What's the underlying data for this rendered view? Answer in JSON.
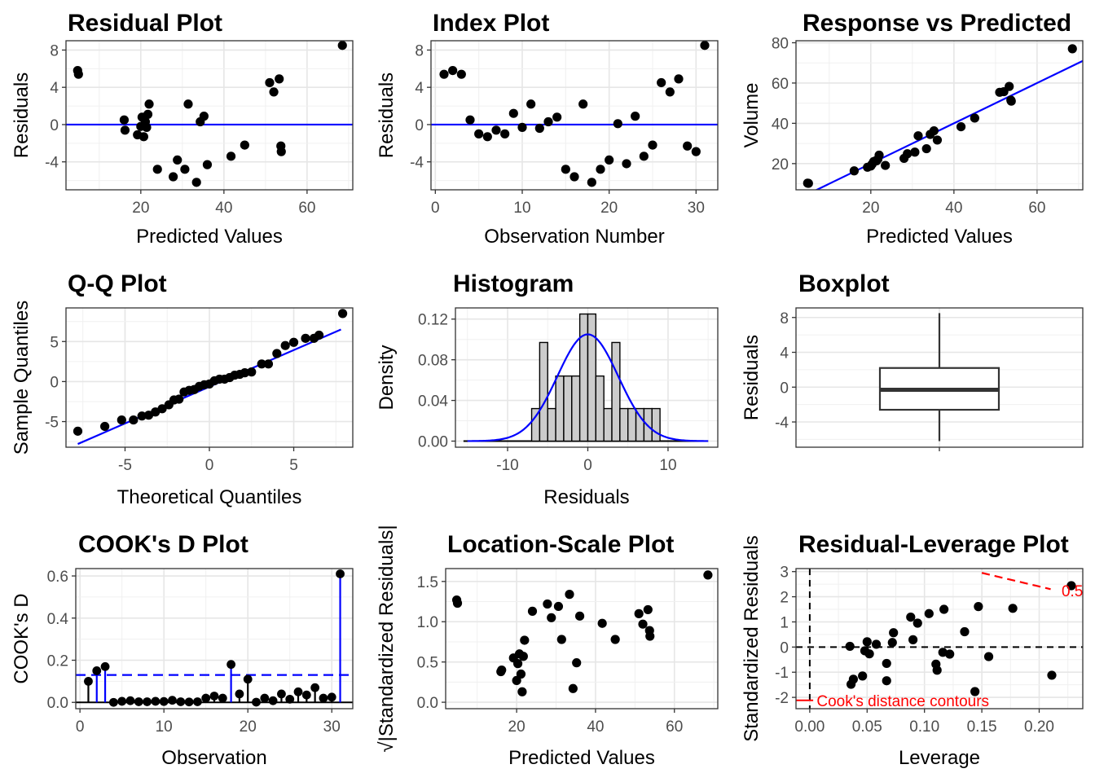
{
  "chart_data": [
    {
      "type": "scatter",
      "title": "Residual Plot",
      "xlabel": "Predicted Values",
      "ylabel": "Residuals",
      "xlim": [
        2,
        71
      ],
      "ylim": [
        -7,
        9
      ],
      "xticks": [
        20,
        40,
        60
      ],
      "yticks": [
        -4,
        0,
        4,
        8
      ],
      "reference_line": {
        "type": "horizontal",
        "y": 0,
        "color": "#0000ff"
      },
      "points": [
        [
          4.8,
          5.8
        ],
        [
          5.0,
          5.4
        ],
        [
          16.0,
          0.5
        ],
        [
          16.2,
          -0.6
        ],
        [
          19.2,
          -1.1
        ],
        [
          20.0,
          -0.2
        ],
        [
          20.3,
          0.8
        ],
        [
          20.7,
          -1.3
        ],
        [
          21.1,
          0.3
        ],
        [
          21.4,
          -0.3
        ],
        [
          21.7,
          1.1
        ],
        [
          22.0,
          2.2
        ],
        [
          24.0,
          -4.8
        ],
        [
          27.8,
          -5.6
        ],
        [
          28.8,
          -3.8
        ],
        [
          30.6,
          -4.8
        ],
        [
          31.4,
          2.2
        ],
        [
          33.4,
          -6.2
        ],
        [
          34.3,
          0.3
        ],
        [
          35.2,
          0.9
        ],
        [
          36.0,
          -4.3
        ],
        [
          41.7,
          -3.4
        ],
        [
          45.0,
          -2.2
        ],
        [
          51.0,
          4.5
        ],
        [
          52.0,
          3.5
        ],
        [
          53.3,
          4.9
        ],
        [
          53.7,
          -2.3
        ],
        [
          53.8,
          -2.9
        ],
        [
          68.5,
          8.5
        ]
      ]
    },
    {
      "type": "scatter",
      "title": "Index Plot",
      "xlabel": "Observation Number",
      "ylabel": "Residuals",
      "xlim": [
        -0.5,
        32.5
      ],
      "ylim": [
        -7,
        9
      ],
      "xticks": [
        0,
        10,
        20,
        30
      ],
      "yticks": [
        -4,
        0,
        4,
        8
      ],
      "reference_line": {
        "type": "horizontal",
        "y": 0,
        "color": "#0000ff"
      },
      "points": [
        [
          1,
          5.4
        ],
        [
          2,
          5.8
        ],
        [
          3,
          5.4
        ],
        [
          4,
          0.5
        ],
        [
          5,
          -1.0
        ],
        [
          6,
          -1.3
        ],
        [
          7,
          -0.6
        ],
        [
          8,
          -1.0
        ],
        [
          9,
          1.2
        ],
        [
          10,
          -0.3
        ],
        [
          11,
          2.2
        ],
        [
          12,
          -0.4
        ],
        [
          13,
          0.3
        ],
        [
          14,
          0.8
        ],
        [
          15,
          -4.8
        ],
        [
          16,
          -5.6
        ],
        [
          17,
          2.2
        ],
        [
          18,
          -6.2
        ],
        [
          19,
          -4.8
        ],
        [
          20,
          -3.8
        ],
        [
          21,
          0.1
        ],
        [
          22,
          -4.2
        ],
        [
          23,
          0.9
        ],
        [
          24,
          -3.4
        ],
        [
          25,
          -2.2
        ],
        [
          26,
          4.5
        ],
        [
          27,
          3.5
        ],
        [
          28,
          4.9
        ],
        [
          29,
          -2.3
        ],
        [
          30,
          -2.9
        ],
        [
          31,
          8.5
        ]
      ]
    },
    {
      "type": "scatter",
      "title": "Response vs Predicted",
      "xlabel": "Predicted Values",
      "ylabel": "Volume",
      "xlim": [
        2,
        71
      ],
      "ylim": [
        7,
        81
      ],
      "xticks": [
        20,
        40,
        60
      ],
      "yticks": [
        20,
        40,
        60,
        80
      ],
      "reference_line": {
        "type": "identity",
        "color": "#0000ff"
      },
      "points": [
        [
          4.8,
          10.3
        ],
        [
          5.0,
          10.2
        ],
        [
          16.0,
          16.4
        ],
        [
          19.2,
          18.2
        ],
        [
          20.0,
          18.8
        ],
        [
          20.3,
          19.7
        ],
        [
          20.7,
          21.0
        ],
        [
          21.1,
          21.3
        ],
        [
          21.4,
          21.4
        ],
        [
          21.7,
          22.2
        ],
        [
          22.0,
          24.2
        ],
        [
          23.5,
          19.1
        ],
        [
          28.0,
          22.6
        ],
        [
          28.8,
          24.9
        ],
        [
          30.6,
          25.7
        ],
        [
          31.4,
          33.8
        ],
        [
          33.4,
          27.4
        ],
        [
          34.3,
          34.5
        ],
        [
          35.2,
          36.3
        ],
        [
          36.0,
          31.7
        ],
        [
          41.7,
          38.3
        ],
        [
          45.0,
          42.6
        ],
        [
          51.0,
          55.4
        ],
        [
          52.0,
          55.7
        ],
        [
          53.3,
          58.3
        ],
        [
          53.7,
          51.5
        ],
        [
          53.8,
          51.0
        ],
        [
          68.5,
          77.0
        ]
      ]
    },
    {
      "type": "scatter",
      "title": "Q-Q Plot",
      "xlabel": "Theoretical Quantiles",
      "ylabel": "Sample Quantiles",
      "xlim": [
        -8.5,
        8.5
      ],
      "ylim": [
        -8.2,
        9.2
      ],
      "xticks": [
        -5,
        0,
        5
      ],
      "yticks": [
        -5,
        0,
        5
      ],
      "reference_line": {
        "type": "line",
        "from": [
          -7.8,
          -7.8
        ],
        "to": [
          7.8,
          6.5
        ],
        "color": "#0000ff"
      },
      "points": [
        [
          -7.8,
          -6.2
        ],
        [
          -6.2,
          -5.6
        ],
        [
          -5.2,
          -4.8
        ],
        [
          -4.5,
          -4.8
        ],
        [
          -4.0,
          -4.3
        ],
        [
          -3.6,
          -4.2
        ],
        [
          -3.2,
          -3.8
        ],
        [
          -2.8,
          -3.4
        ],
        [
          -2.4,
          -2.9
        ],
        [
          -2.1,
          -2.3
        ],
        [
          -1.8,
          -2.2
        ],
        [
          -1.5,
          -1.3
        ],
        [
          -1.2,
          -1.1
        ],
        [
          -0.9,
          -1.0
        ],
        [
          -0.6,
          -0.6
        ],
        [
          -0.3,
          -0.4
        ],
        [
          0.0,
          -0.3
        ],
        [
          0.3,
          0.1
        ],
        [
          0.6,
          0.3
        ],
        [
          0.9,
          0.3
        ],
        [
          1.2,
          0.5
        ],
        [
          1.5,
          0.8
        ],
        [
          1.8,
          0.9
        ],
        [
          2.1,
          1.1
        ],
        [
          2.5,
          1.2
        ],
        [
          3.1,
          2.2
        ],
        [
          3.5,
          2.2
        ],
        [
          4.0,
          3.5
        ],
        [
          4.5,
          4.5
        ],
        [
          5.0,
          4.9
        ],
        [
          5.7,
          5.4
        ],
        [
          6.2,
          5.4
        ],
        [
          6.5,
          5.8
        ],
        [
          7.9,
          8.5
        ]
      ]
    },
    {
      "type": "bar",
      "subtype": "histogram",
      "title": "Histogram",
      "xlabel": "Residuals",
      "ylabel": "Density",
      "xlim": [
        -16.5,
        16.2
      ],
      "ylim": [
        -0.006,
        0.131
      ],
      "xticks": [
        -10,
        0,
        10
      ],
      "yticks": [
        0.0,
        0.04,
        0.08,
        0.12
      ],
      "ytick_labels": [
        "0.00",
        "0.04",
        "0.08",
        "0.12"
      ],
      "bin_width": 1,
      "bin_edges_start": -7,
      "values": [
        0.032,
        0.097,
        0.032,
        0.064,
        0.064,
        0.064,
        0.125,
        0.125,
        0.064,
        0.032,
        0.097,
        0.032,
        0.032,
        0.032,
        0.032,
        0.032
      ],
      "density_curve": {
        "type": "normal",
        "mean": 0,
        "sd": 3.8,
        "x_range": [
          -15,
          15
        ],
        "color": "#0000ff"
      },
      "baseline": [
        -15.5,
        15.0
      ]
    },
    {
      "type": "boxplot",
      "title": "Boxplot",
      "xlabel": "",
      "ylabel": "Residuals",
      "ylim": [
        -6.9,
        9.1
      ],
      "yticks": [
        -4,
        0,
        4,
        8
      ],
      "stats": {
        "min": -6.2,
        "q1": -2.6,
        "median": -0.3,
        "q3": 2.2,
        "max": 8.5
      }
    },
    {
      "type": "bar",
      "subtype": "lollipop",
      "title": "COOK's D Plot",
      "xlabel": "Observation",
      "ylabel": "COOK's D",
      "xlim": [
        -0.5,
        32.5
      ],
      "ylim": [
        -0.03,
        0.635
      ],
      "xticks": [
        0,
        10,
        20,
        30
      ],
      "yticks": [
        0.0,
        0.2,
        0.4,
        0.6
      ],
      "ytick_labels": [
        "0.0",
        "0.2",
        "0.4",
        "0.6"
      ],
      "threshold_line": {
        "y": 0.13,
        "color": "#0000ff",
        "dashed": true
      },
      "highlight_above_threshold": true,
      "categories": [
        1,
        2,
        3,
        4,
        5,
        6,
        7,
        8,
        9,
        10,
        11,
        12,
        13,
        14,
        15,
        16,
        17,
        18,
        19,
        20,
        21,
        22,
        23,
        24,
        25,
        26,
        27,
        28,
        29,
        30,
        31
      ],
      "values": [
        0.1,
        0.15,
        0.17,
        0.0,
        0.005,
        0.008,
        0.003,
        0.003,
        0.005,
        0.004,
        0.01,
        0.003,
        0.002,
        0.003,
        0.02,
        0.03,
        0.02,
        0.18,
        0.04,
        0.11,
        0.001,
        0.02,
        0.008,
        0.04,
        0.015,
        0.05,
        0.035,
        0.07,
        0.02,
        0.025,
        0.61
      ]
    },
    {
      "type": "scatter",
      "title": "Location-Scale Plot",
      "xlabel": "Predicted Values",
      "ylabel": "√|Standardized Residuals|",
      "xlim": [
        2,
        71
      ],
      "ylim": [
        -0.08,
        1.66
      ],
      "xticks": [
        20,
        40,
        60
      ],
      "yticks": [
        0.0,
        0.5,
        1.0,
        1.5
      ],
      "ytick_labels": [
        "0.0",
        "0.5",
        "1.0",
        "1.5"
      ],
      "points": [
        [
          4.8,
          1.27
        ],
        [
          5.0,
          1.23
        ],
        [
          16.0,
          0.38
        ],
        [
          16.2,
          0.4
        ],
        [
          19.2,
          0.55
        ],
        [
          20.0,
          0.27
        ],
        [
          20.3,
          0.48
        ],
        [
          20.7,
          0.6
        ],
        [
          21.1,
          0.35
        ],
        [
          21.4,
          0.13
        ],
        [
          21.7,
          0.57
        ],
        [
          22.0,
          0.77
        ],
        [
          24.0,
          1.13
        ],
        [
          27.8,
          1.22
        ],
        [
          28.8,
          1.05
        ],
        [
          30.6,
          1.19
        ],
        [
          31.4,
          0.78
        ],
        [
          33.4,
          1.34
        ],
        [
          34.3,
          0.17
        ],
        [
          35.2,
          0.49
        ],
        [
          36.0,
          1.07
        ],
        [
          41.7,
          0.98
        ],
        [
          45.0,
          0.78
        ],
        [
          51.0,
          1.1
        ],
        [
          52.0,
          0.97
        ],
        [
          53.3,
          1.15
        ],
        [
          53.7,
          0.89
        ],
        [
          53.8,
          0.82
        ],
        [
          68.5,
          1.58
        ]
      ]
    },
    {
      "type": "scatter",
      "title": "Residual-Leverage Plot",
      "xlabel": "Leverage",
      "ylabel": "Standardized Residuals",
      "xlim": [
        -0.012,
        0.238
      ],
      "ylim": [
        -2.45,
        3.12
      ],
      "xticks": [
        0.0,
        0.05,
        0.1,
        0.15,
        0.2
      ],
      "xtick_labels": [
        "0.00",
        "0.05",
        "0.10",
        "0.15",
        "0.20"
      ],
      "yticks": [
        -2,
        -1,
        0,
        1,
        2,
        3
      ],
      "annotations": [
        "Cook's distance contours",
        "0.5"
      ],
      "points": [
        [
          0.035,
          0.03
        ],
        [
          0.036,
          -1.48
        ],
        [
          0.038,
          -1.28
        ],
        [
          0.046,
          -1.15
        ],
        [
          0.048,
          -0.15
        ],
        [
          0.05,
          0.21
        ],
        [
          0.052,
          -0.27
        ],
        [
          0.058,
          0.11
        ],
        [
          0.067,
          -0.65
        ],
        [
          0.067,
          -1.34
        ],
        [
          0.072,
          0.18
        ],
        [
          0.073,
          0.57
        ],
        [
          0.088,
          1.19
        ],
        [
          0.09,
          0.29
        ],
        [
          0.094,
          0.95
        ],
        [
          0.104,
          1.33
        ],
        [
          0.11,
          -0.68
        ],
        [
          0.111,
          -0.92
        ],
        [
          0.116,
          -0.21
        ],
        [
          0.117,
          1.5
        ],
        [
          0.122,
          -0.28
        ],
        [
          0.135,
          0.61
        ],
        [
          0.144,
          -1.77
        ],
        [
          0.147,
          1.61
        ],
        [
          0.156,
          -0.38
        ],
        [
          0.177,
          1.54
        ],
        [
          0.211,
          -1.12
        ],
        [
          0.228,
          2.44
        ]
      ],
      "reference_lines": [
        {
          "type": "horizontal",
          "y": 0,
          "color": "#000000",
          "dashed": true
        },
        {
          "type": "vertical",
          "x": 0,
          "color": "#000000",
          "dashed": true
        }
      ],
      "contour": {
        "color": "#ff0000",
        "points": [
          [
            0.15,
            2.95
          ],
          [
            0.21,
            2.3
          ]
        ],
        "cook_value": 0.5
      }
    }
  ]
}
